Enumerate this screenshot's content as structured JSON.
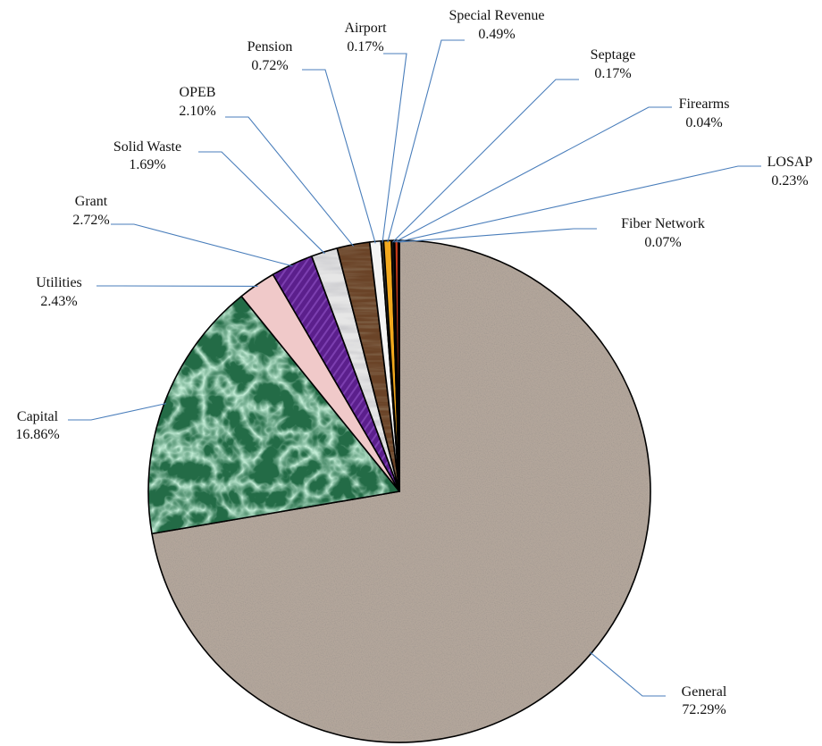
{
  "chart_data": {
    "type": "pie",
    "title": "",
    "start_angle_deg": 0,
    "direction": "clockwise",
    "slices": [
      {
        "name": "General",
        "value": 72.29,
        "label": "72.29%",
        "color": "#b3a69b",
        "pattern": "granite"
      },
      {
        "name": "Capital",
        "value": 16.86,
        "label": "16.86%",
        "color": "#236b46",
        "pattern": "marble"
      },
      {
        "name": "Utilities",
        "value": 2.43,
        "label": "2.43%",
        "color": "#f0c9c9",
        "pattern": "none"
      },
      {
        "name": "Grant",
        "value": 2.72,
        "label": "2.72%",
        "color": "#5b1f8c",
        "pattern": "stripes"
      },
      {
        "name": "Solid Waste",
        "value": 1.69,
        "label": "1.69%",
        "color": "#e6e6e6",
        "pattern": "sheen"
      },
      {
        "name": "OPEB",
        "value": 2.1,
        "label": "2.10%",
        "color": "#6a4327",
        "pattern": "wood"
      },
      {
        "name": "Pension",
        "value": 0.72,
        "label": "0.72%",
        "color": "#f4f4f4",
        "pattern": "none"
      },
      {
        "name": "Airport",
        "value": 0.17,
        "label": "0.17%",
        "color": "#3a3a3a",
        "pattern": "none"
      },
      {
        "name": "Special Revenue",
        "value": 0.49,
        "label": "0.49%",
        "color": "#f2a81d",
        "pattern": "none"
      },
      {
        "name": "Septage",
        "value": 0.17,
        "label": "0.17%",
        "color": "#1a1a1a",
        "pattern": "none"
      },
      {
        "name": "Firearms",
        "value": 0.04,
        "label": "0.04%",
        "color": "#7a4a1a",
        "pattern": "none"
      },
      {
        "name": "LOSAP",
        "value": 0.23,
        "label": "0.23%",
        "color": "#c23a1a",
        "pattern": "none"
      },
      {
        "name": "Fiber Network",
        "value": 0.07,
        "label": "0.07%",
        "color": "#2a4a8a",
        "pattern": "none"
      }
    ]
  }
}
